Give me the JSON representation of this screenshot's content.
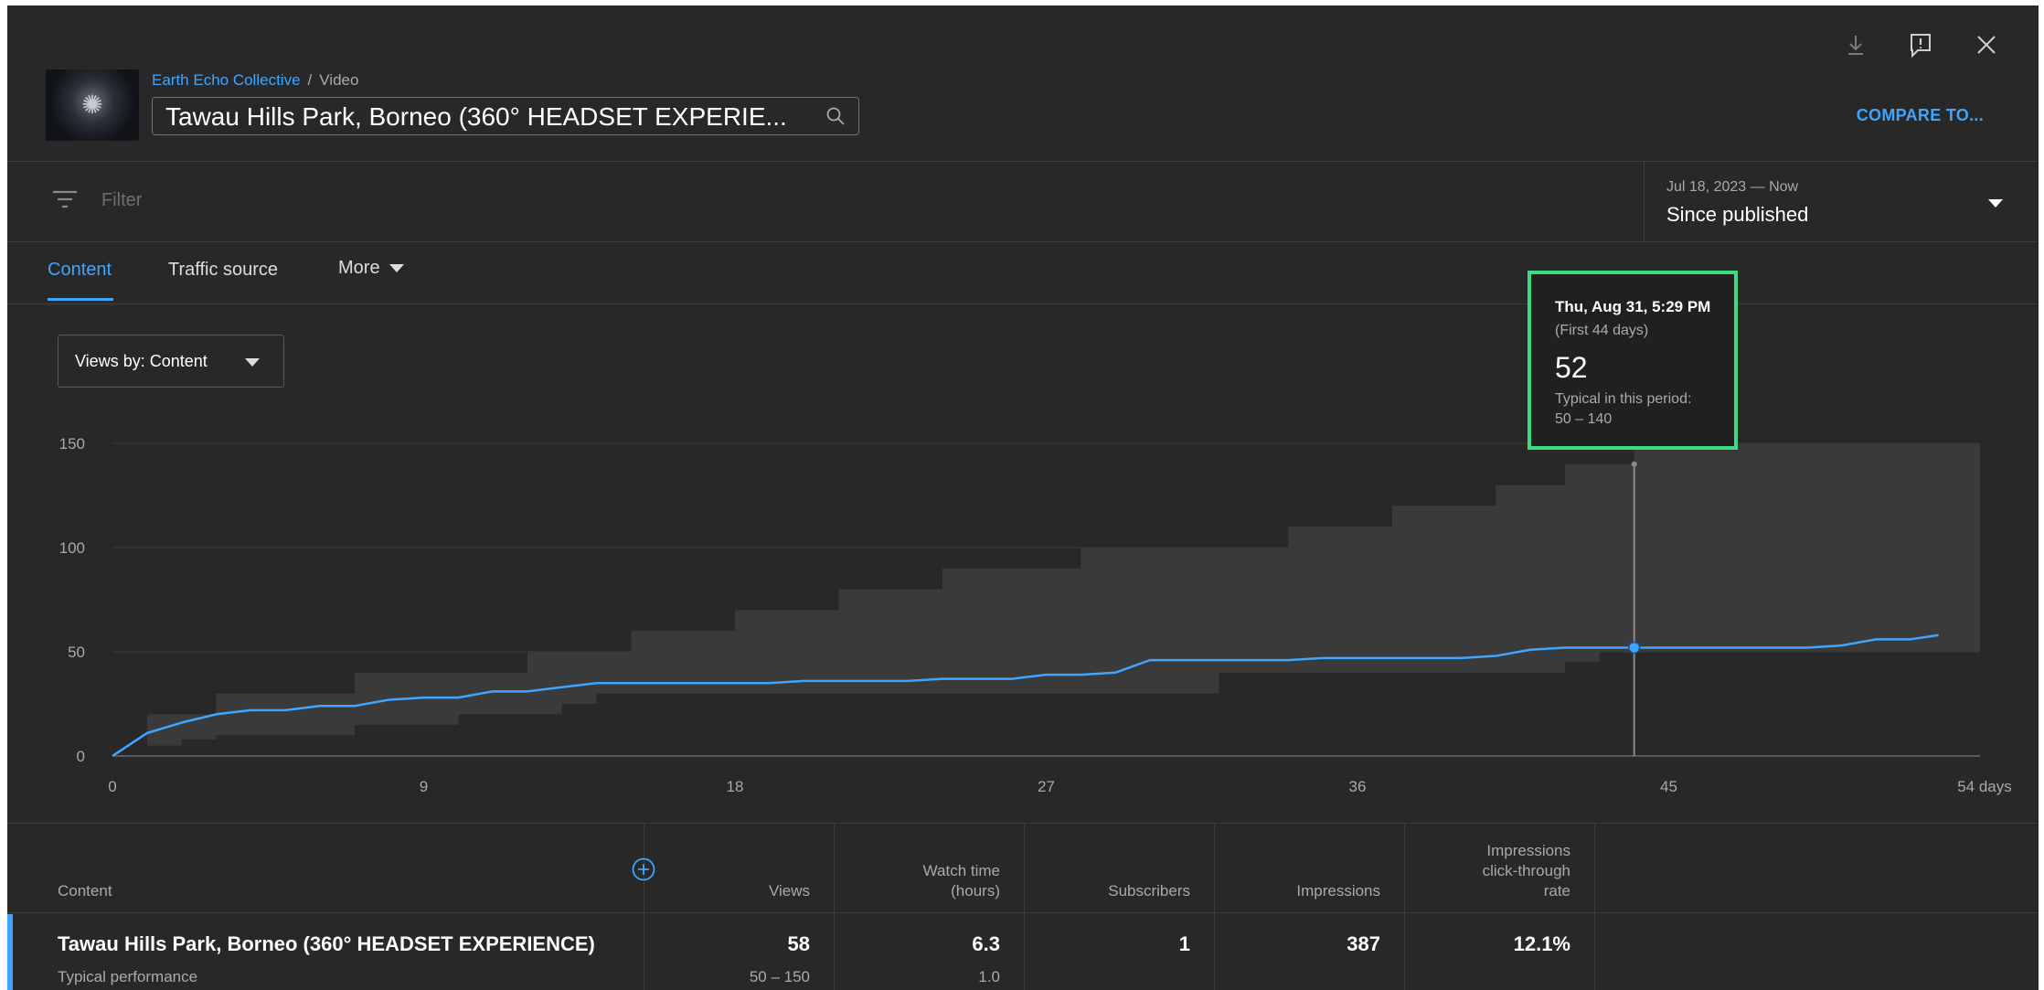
{
  "header": {
    "breadcrumb_channel": "Earth Echo Collective",
    "breadcrumb_separator": "/",
    "breadcrumb_page": "Video",
    "video_title": "Tawau Hills Park, Borneo (360° HEADSET EXPERIE...",
    "compare_label": "COMPARE TO...",
    "icons": [
      "download-icon",
      "feedback-icon",
      "close-icon",
      "search-icon"
    ]
  },
  "filter": {
    "label": "Filter",
    "date_range_sub": "Jul 18, 2023 — Now",
    "date_range_main": "Since published"
  },
  "tabs": [
    {
      "label": "Content",
      "active": true
    },
    {
      "label": "Traffic source",
      "active": false
    },
    {
      "label": "More",
      "active": false
    }
  ],
  "views_by": {
    "label": "Views by: Content"
  },
  "chart_data": {
    "type": "line",
    "xlabel": "",
    "ylabel": "",
    "x_ticks": [
      "0",
      "9",
      "18",
      "27",
      "36",
      "45",
      "54 days"
    ],
    "y_ticks": [
      "0",
      "50",
      "100",
      "150"
    ],
    "xlim": [
      0,
      54
    ],
    "ylim": [
      0,
      150
    ],
    "grid": true,
    "series": [
      {
        "x": [
          0,
          1,
          2,
          3,
          4,
          5,
          6,
          7,
          8,
          9,
          10,
          11,
          12,
          13,
          14,
          15,
          16,
          17,
          18,
          19,
          20,
          21,
          22,
          23,
          24,
          25,
          26,
          27,
          28,
          29,
          30,
          31,
          32,
          33,
          34,
          35,
          36,
          37,
          38,
          39,
          40,
          41,
          42,
          43,
          44,
          45,
          46,
          47,
          48,
          49,
          50,
          51,
          52,
          52.8
        ],
        "y": [
          0,
          11,
          16,
          20,
          22,
          22,
          24,
          24,
          27,
          28,
          28,
          31,
          31,
          33,
          35,
          35,
          35,
          35,
          35,
          35,
          36,
          36,
          36,
          36,
          37,
          37,
          37,
          39,
          39,
          40,
          46,
          46,
          46,
          46,
          46,
          47,
          47,
          47,
          47,
          47,
          48,
          51,
          52,
          52,
          52,
          52,
          52,
          52,
          52,
          52,
          53,
          56,
          56,
          58
        ]
      }
    ],
    "typical_band": {
      "x": [
        0,
        1,
        2,
        3,
        4,
        5,
        6,
        7,
        8,
        9,
        10,
        11,
        12,
        13,
        14,
        15,
        16,
        17,
        18,
        19,
        20,
        21,
        22,
        23,
        24,
        25,
        26,
        27,
        28,
        29,
        30,
        31,
        32,
        33,
        34,
        35,
        36,
        37,
        38,
        39,
        40,
        41,
        42,
        43,
        44,
        45,
        46,
        47,
        48,
        49,
        50,
        51,
        52,
        53,
        54
      ],
      "low": [
        0,
        5,
        8,
        10,
        10,
        10,
        10,
        15,
        15,
        15,
        20,
        20,
        20,
        25,
        30,
        30,
        30,
        30,
        30,
        30,
        30,
        30,
        30,
        30,
        30,
        30,
        30,
        30,
        30,
        30,
        30,
        30,
        40,
        40,
        40,
        40,
        40,
        40,
        40,
        40,
        40,
        40,
        45,
        50,
        50,
        50,
        50,
        50,
        50,
        50,
        50,
        50,
        50,
        50,
        50
      ],
      "high": [
        0,
        20,
        20,
        30,
        30,
        30,
        30,
        40,
        40,
        40,
        40,
        40,
        50,
        50,
        50,
        60,
        60,
        60,
        70,
        70,
        70,
        80,
        80,
        80,
        90,
        90,
        90,
        90,
        100,
        100,
        100,
        100,
        100,
        100,
        110,
        110,
        110,
        120,
        120,
        120,
        130,
        130,
        140,
        140,
        150,
        150,
        150,
        150,
        150,
        150,
        150,
        150,
        150,
        150,
        150
      ]
    },
    "highlight": {
      "x": 44,
      "y": 52
    }
  },
  "tooltip": {
    "date": "Thu, Aug 31, 5:29 PM",
    "period": "(First 44 days)",
    "value": "52",
    "typical_label": "Typical in this period:",
    "typical_range": "50 – 140"
  },
  "table": {
    "columns": {
      "content": "Content",
      "views": "Views",
      "watch_time_1": "Watch time",
      "watch_time_2": "(hours)",
      "subscribers": "Subscribers",
      "impressions": "Impressions",
      "ctr_1": "Impressions",
      "ctr_2": "click-through",
      "ctr_3": "rate"
    },
    "row": {
      "title": "Tawau Hills Park, Borneo (360° HEADSET EXPERIENCE)",
      "subtitle": "Typical performance",
      "views": "58",
      "views_typical": "50 – 150",
      "watch_time": "6.3",
      "watch_time_typical": "1.0",
      "subscribers": "1",
      "impressions": "387",
      "ctr": "12.1%"
    }
  },
  "colors": {
    "background": "#282828",
    "accent": "#3ea6ff",
    "line": "#3ea6ff",
    "band": "#3a3a3a",
    "highlight_border": "#3ddc84"
  }
}
